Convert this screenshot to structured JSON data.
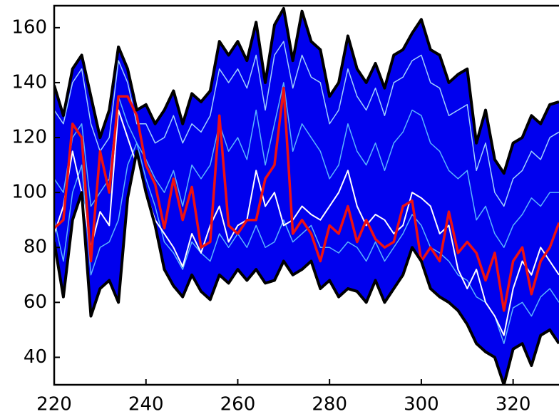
{
  "chart_data": {
    "type": "line",
    "x": [
      220,
      222,
      224,
      226,
      228,
      230,
      232,
      234,
      236,
      238,
      240,
      242,
      244,
      246,
      248,
      250,
      252,
      254,
      256,
      258,
      260,
      262,
      264,
      266,
      268,
      270,
      272,
      274,
      276,
      278,
      280,
      282,
      284,
      286,
      288,
      290,
      292,
      294,
      296,
      298,
      300,
      302,
      304,
      306,
      308,
      310,
      312,
      314,
      316,
      318,
      320,
      322,
      324,
      326,
      328,
      330
    ],
    "xlim": [
      220,
      330
    ],
    "ylim": [
      30,
      168
    ],
    "xticks": [
      220,
      240,
      260,
      280,
      300,
      320
    ],
    "yticks": [
      40,
      60,
      80,
      100,
      120,
      140,
      160
    ],
    "band": {
      "color": "#0000ee",
      "edge_color": "#000000",
      "upper": [
        139,
        128,
        145,
        150,
        135,
        120,
        130,
        153,
        145,
        130,
        132,
        125,
        130,
        137,
        125,
        136,
        133,
        137,
        155,
        150,
        155,
        148,
        162,
        140,
        161,
        167,
        148,
        166,
        155,
        152,
        135,
        140,
        157,
        145,
        140,
        147,
        138,
        150,
        152,
        158,
        163,
        152,
        150,
        140,
        143,
        145,
        118,
        130,
        112,
        107,
        118,
        120,
        128,
        125,
        132,
        133
      ],
      "lower": [
        82,
        62,
        90,
        100,
        55,
        65,
        68,
        60,
        98,
        115,
        100,
        88,
        72,
        66,
        62,
        70,
        64,
        61,
        70,
        67,
        72,
        68,
        72,
        67,
        68,
        75,
        70,
        72,
        75,
        65,
        68,
        62,
        65,
        64,
        60,
        68,
        60,
        65,
        70,
        80,
        75,
        65,
        62,
        60,
        57,
        52,
        45,
        42,
        40,
        30,
        43,
        45,
        37,
        48,
        50,
        45
      ]
    },
    "series": [
      {
        "color": "#a0d0ff",
        "width": 1.5,
        "values": [
          130,
          125,
          140,
          145,
          125,
          115,
          120,
          148,
          140,
          125,
          125,
          118,
          120,
          128,
          118,
          125,
          122,
          128,
          145,
          140,
          145,
          138,
          150,
          130,
          150,
          155,
          138,
          150,
          142,
          140,
          125,
          130,
          145,
          135,
          130,
          138,
          128,
          140,
          142,
          148,
          150,
          140,
          138,
          128,
          130,
          132,
          108,
          118,
          100,
          95,
          105,
          108,
          115,
          112,
          120,
          122
        ]
      },
      {
        "color": "#5ab4ff",
        "width": 1.5,
        "values": [
          105,
          100,
          120,
          125,
          95,
          100,
          105,
          135,
          125,
          118,
          112,
          105,
          100,
          108,
          95,
          110,
          105,
          110,
          125,
          115,
          120,
          112,
          130,
          110,
          125,
          140,
          115,
          125,
          120,
          115,
          105,
          110,
          125,
          115,
          110,
          118,
          108,
          118,
          122,
          130,
          128,
          118,
          115,
          108,
          105,
          108,
          90,
          95,
          85,
          80,
          88,
          92,
          98,
          95,
          100,
          100
        ]
      },
      {
        "color": "#5ab4ff",
        "width": 1.5,
        "values": [
          90,
          75,
          100,
          110,
          70,
          80,
          82,
          90,
          110,
          118,
          105,
          95,
          82,
          78,
          72,
          82,
          78,
          75,
          85,
          80,
          85,
          80,
          88,
          80,
          82,
          90,
          82,
          85,
          88,
          80,
          80,
          78,
          82,
          80,
          75,
          82,
          75,
          80,
          85,
          92,
          88,
          80,
          78,
          75,
          70,
          68,
          62,
          60,
          55,
          45,
          58,
          60,
          55,
          62,
          65,
          60
        ]
      },
      {
        "color": "#ffffff",
        "width": 2,
        "values": [
          85,
          95,
          115,
          100,
          80,
          93,
          88,
          130,
          120,
          110,
          100,
          90,
          85,
          80,
          73,
          85,
          78,
          88,
          95,
          82,
          88,
          90,
          108,
          95,
          100,
          88,
          90,
          95,
          92,
          90,
          95,
          100,
          108,
          95,
          88,
          92,
          90,
          85,
          88,
          100,
          98,
          95,
          85,
          88,
          72,
          65,
          72,
          60,
          55,
          48,
          65,
          75,
          70,
          80,
          75,
          70
        ]
      },
      {
        "color": "#ee1111",
        "width": 3.5,
        "values": [
          87,
          90,
          125,
          120,
          75,
          115,
          100,
          135,
          135,
          128,
          110,
          103,
          87,
          105,
          90,
          102,
          80,
          82,
          128,
          88,
          85,
          90,
          90,
          105,
          110,
          138,
          85,
          90,
          85,
          75,
          88,
          85,
          95,
          82,
          90,
          83,
          80,
          82,
          95,
          97,
          75,
          80,
          75,
          93,
          78,
          82,
          78,
          68,
          78,
          57,
          75,
          80,
          63,
          75,
          80,
          89
        ]
      }
    ]
  }
}
